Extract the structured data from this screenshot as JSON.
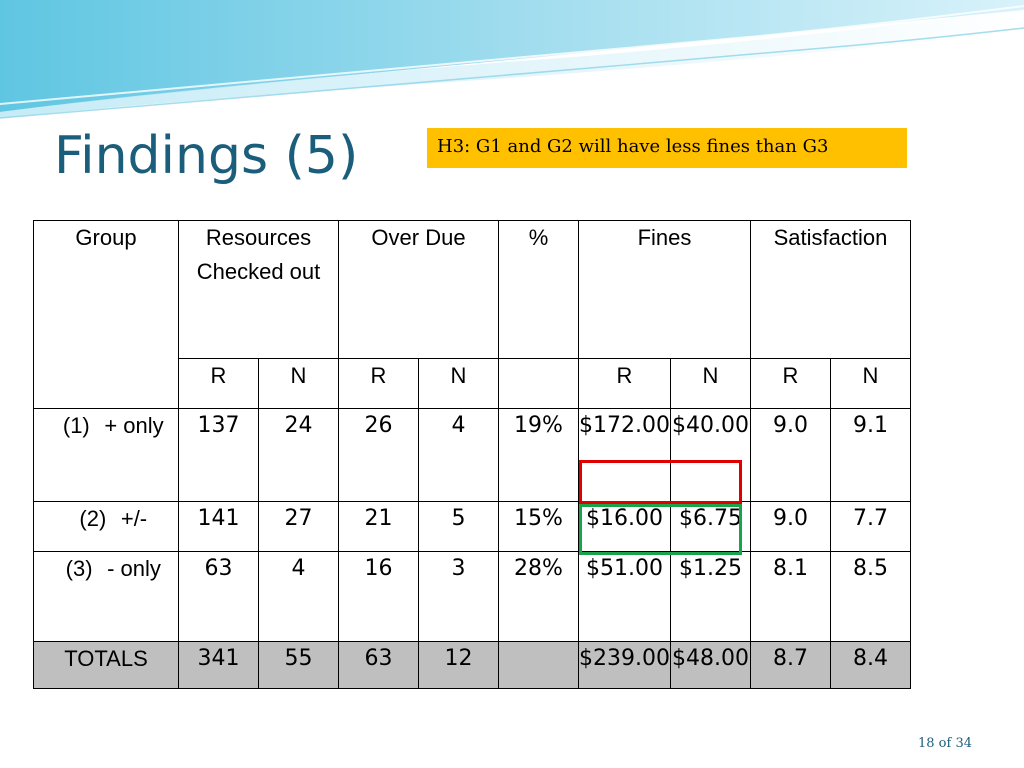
{
  "slide": {
    "title": "Findings (5)",
    "hypothesis": "H3: G1 and G2 will have less fines than G3",
    "page_number": "18 of 34"
  },
  "table": {
    "headers": {
      "group": "Group",
      "resources": "Resources Checked out",
      "over_due": "Over Due",
      "percent": "%",
      "fines": "Fines",
      "satisfaction": "Satisfaction"
    },
    "subheaders": [
      "R",
      "N",
      "R",
      "N",
      "",
      "R",
      "N",
      "R",
      "N"
    ],
    "rows": [
      {
        "index": "(1)",
        "label": "+ only",
        "values": [
          "137",
          "24",
          "26",
          "4",
          "19%",
          "$172.00",
          "$40.00",
          "9.0",
          "9.1"
        ]
      },
      {
        "index": "(2)",
        "label": "+/-",
        "values": [
          "141",
          "27",
          "21",
          "5",
          "15%",
          "$16.00",
          "$6.75",
          "9.0",
          "7.7"
        ]
      },
      {
        "index": "(3)",
        "label": "- only",
        "values": [
          "63",
          "4",
          "16",
          "3",
          "28%",
          "$51.00",
          "$1.25",
          "8.1",
          "8.5"
        ]
      }
    ],
    "totals": {
      "label": "TOTALS",
      "values": [
        "341",
        "55",
        "63",
        "12",
        "",
        "$239.00",
        "$48.00",
        "8.7",
        "8.4"
      ]
    }
  },
  "colors": {
    "title": "#1b5e7b",
    "hypothesis_background": "#ffc000",
    "highlight_red": "#e00000",
    "highlight_green": "#1aa34a",
    "totals_background": "#bfbfbf"
  }
}
